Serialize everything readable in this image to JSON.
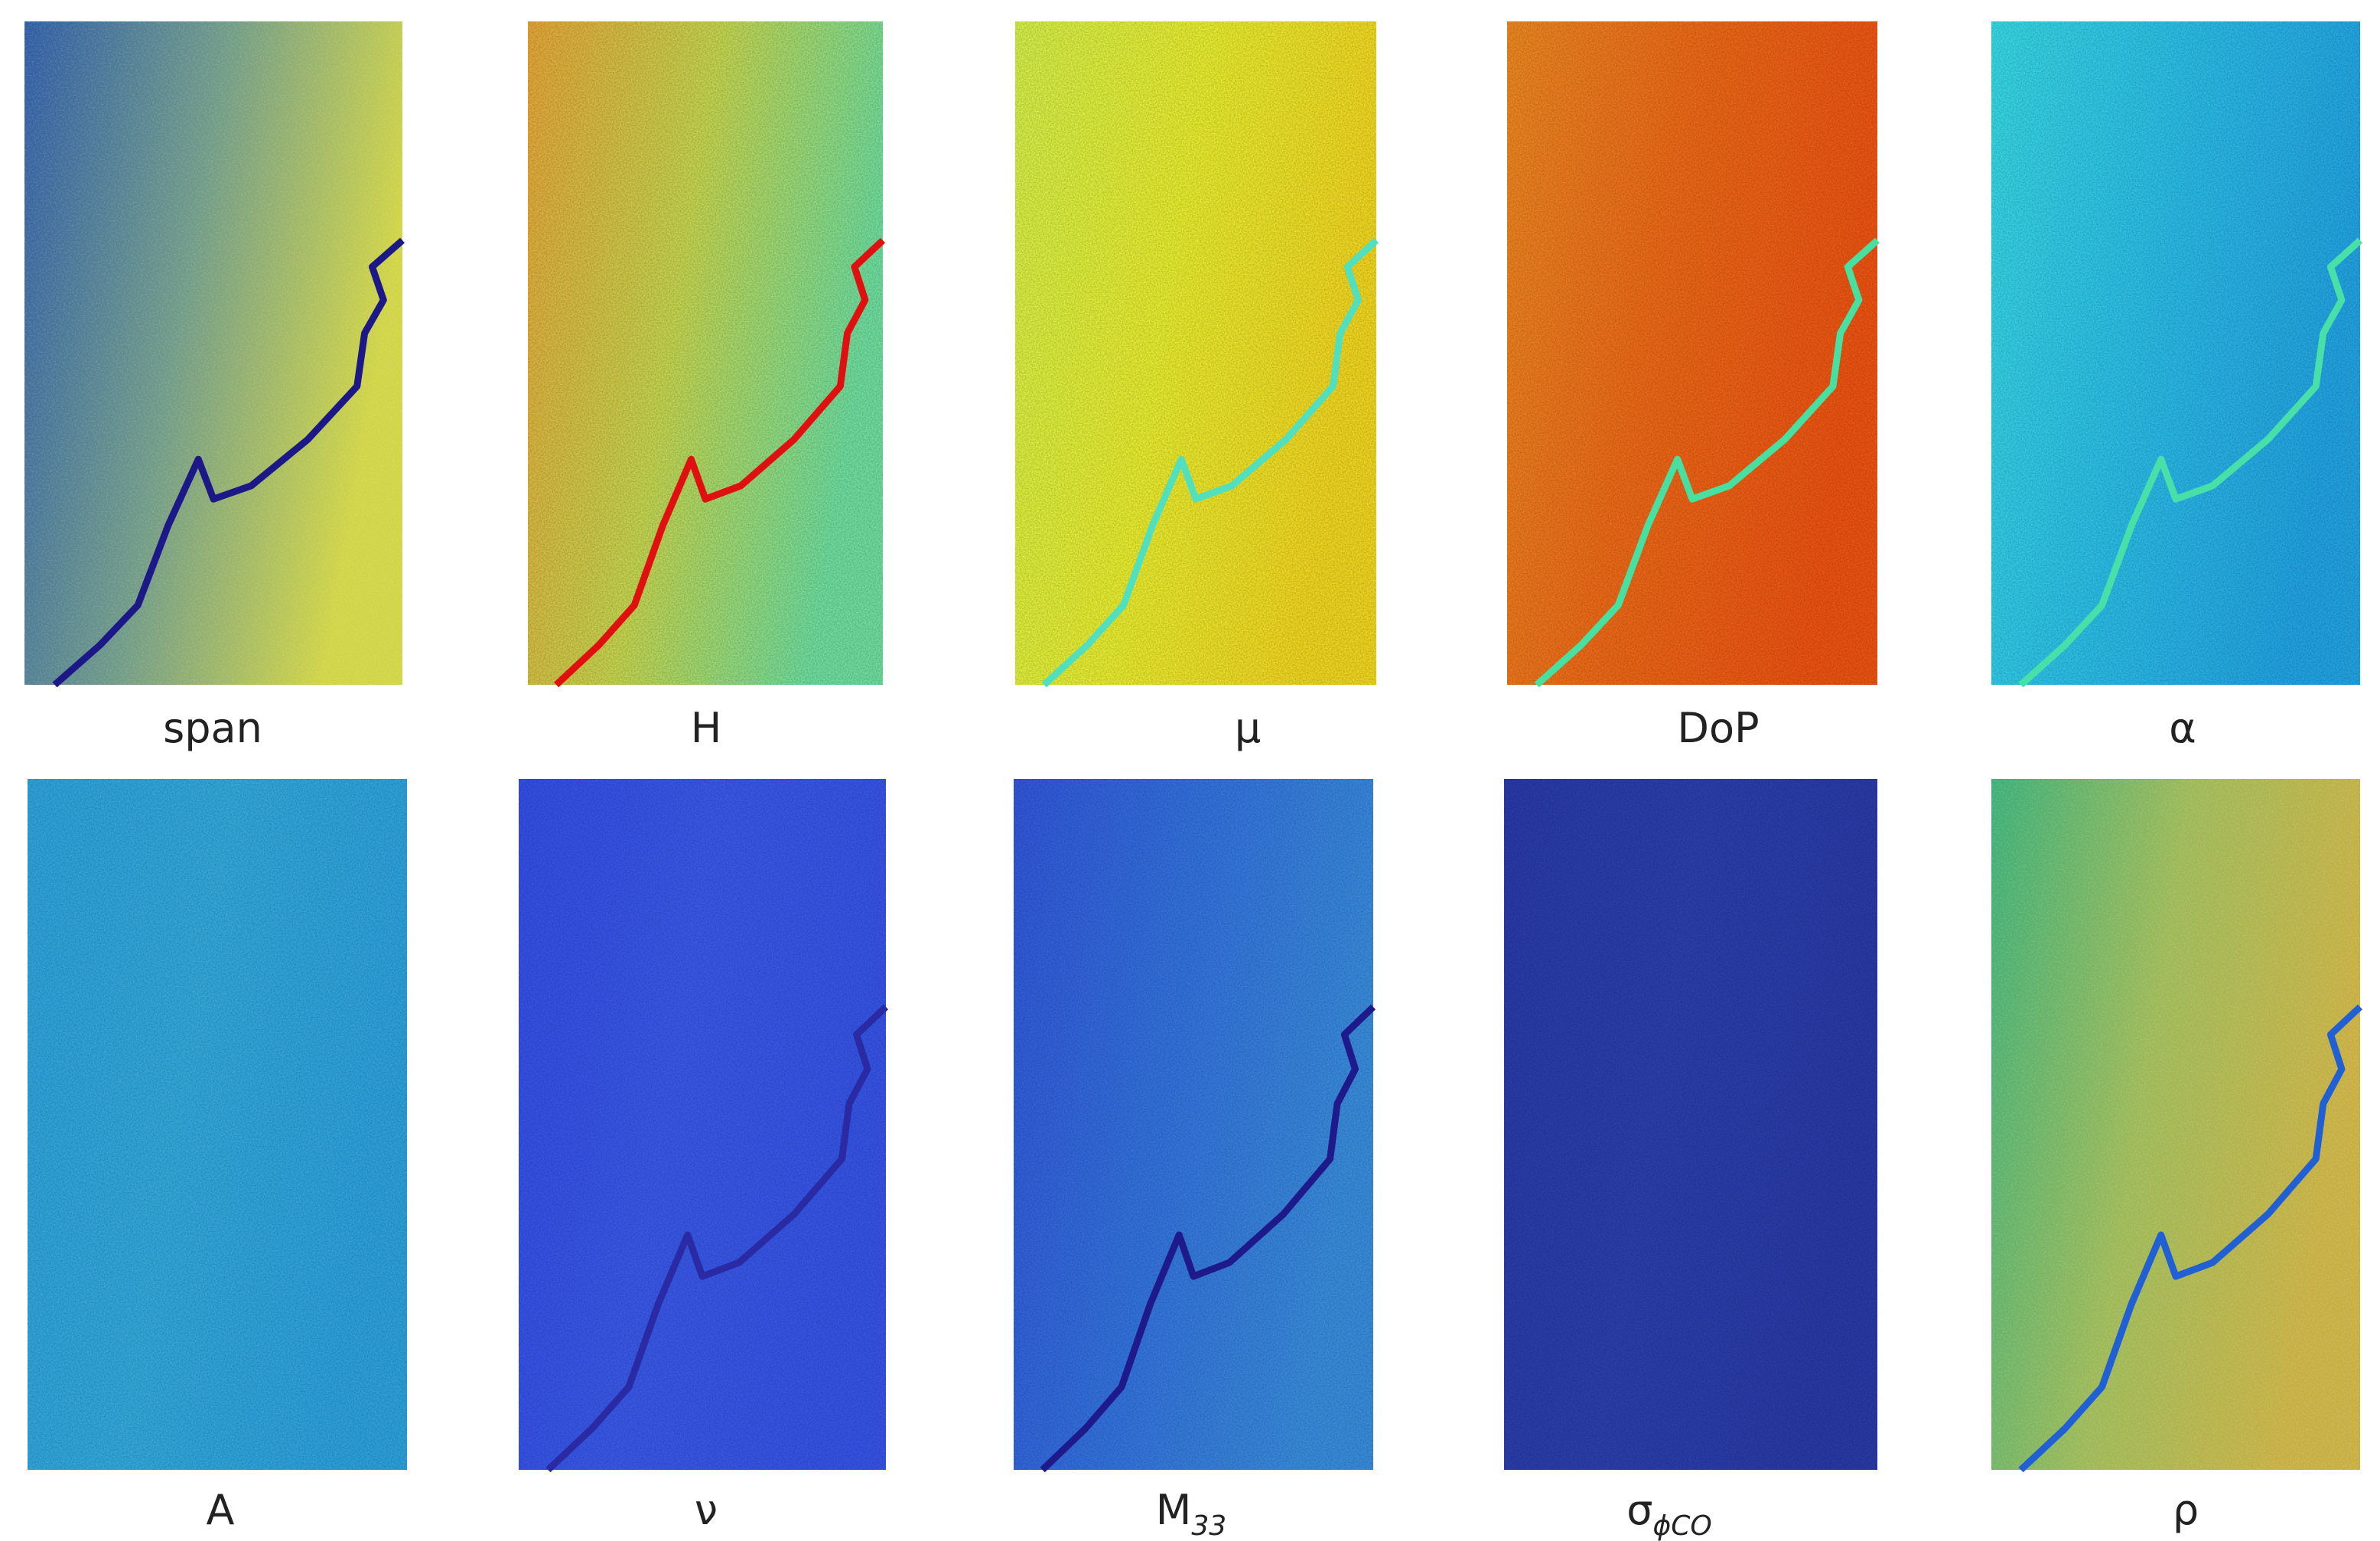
{
  "panels": [
    {
      "label": "span"
    },
    {
      "label": "H"
    },
    {
      "label": "μ"
    },
    {
      "label": "DoP"
    },
    {
      "label": "α"
    },
    {
      "label": "A"
    },
    {
      "label": "ν"
    },
    {
      "label": "M",
      "subscript": "33"
    },
    {
      "label": "σ",
      "subscript": "ϕCO"
    },
    {
      "label": "ρ"
    }
  ]
}
